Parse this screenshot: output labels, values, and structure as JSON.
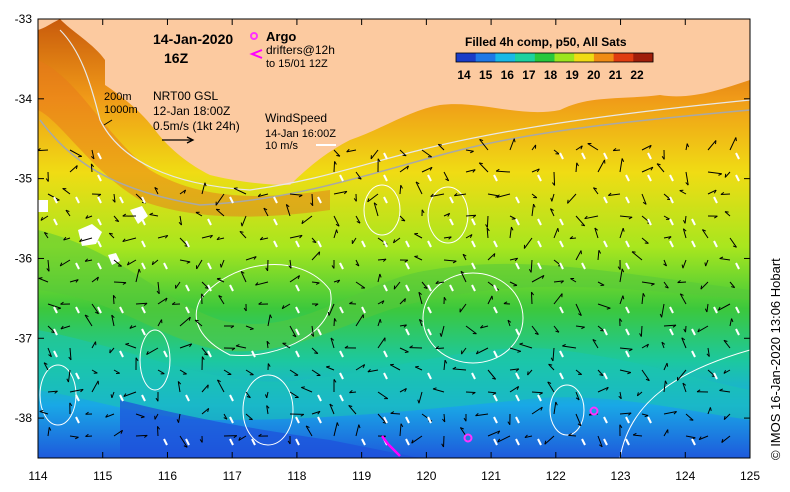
{
  "map": {
    "date_line": "14-Jan-2020",
    "hour_line": "16Z",
    "product_title": "Filled 4h comp, p50, All Sats",
    "colorbar": {
      "ticks": [
        "14",
        "15",
        "16",
        "17",
        "18",
        "19",
        "20",
        "21",
        "22"
      ],
      "colors": [
        "#1a3cc8",
        "#1f78e6",
        "#19b9e6",
        "#1cd2a0",
        "#28c83c",
        "#9ce61e",
        "#f0dc14",
        "#f08c14",
        "#e03c10",
        "#a01e0a"
      ]
    },
    "legend": {
      "argo_label": "Argo",
      "drifters_label": "drifters@12h",
      "drifters_sub": "to 15/01 12Z",
      "depth_200": "200m",
      "depth_1000": "1000m",
      "nrt_label": "NRT00 GSL",
      "nrt_time": "12-Jan 18:00Z",
      "scale_current": "0.5m/s (1kt 24h)",
      "wind_label": "WindSpeed",
      "wind_time": "14-Jan 16:00Z",
      "wind_scale": "10 m/s"
    },
    "x_ticks": [
      "114",
      "115",
      "116",
      "117",
      "118",
      "119",
      "120",
      "121",
      "122",
      "123",
      "124",
      "125"
    ],
    "y_ticks": [
      "-33",
      "-34",
      "-35",
      "-36",
      "-37",
      "-38"
    ],
    "x_range": [
      114,
      125
    ],
    "y_range": [
      -33,
      -38.5
    ],
    "credit": "© IMOS 16-Jan-2020 13:06 Hobart",
    "colors": {
      "land": "#fccaa0",
      "argo": "#ff33ff",
      "drifter": "#ff00ff"
    }
  }
}
